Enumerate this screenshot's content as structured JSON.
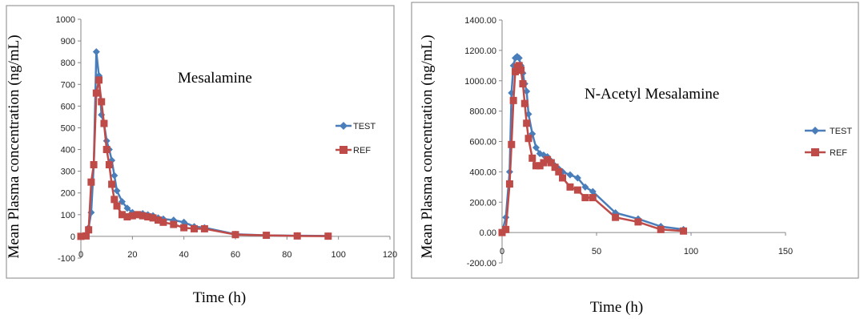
{
  "colors": {
    "test": "#4a7ebb",
    "ref": "#be4b48",
    "axis": "#868686",
    "frame": "#8c8c8c"
  },
  "chart_data": [
    {
      "type": "line",
      "annotation": "Mesalamine",
      "xlabel": "Time (h)",
      "ylabel": "Mean Plasma concentration (ng/mL)",
      "xlim": [
        0,
        120
      ],
      "ylim": [
        -100,
        1000
      ],
      "xticks": [
        0,
        20,
        40,
        60,
        80,
        100,
        120
      ],
      "yticks": [
        -100,
        0,
        100,
        200,
        300,
        400,
        500,
        600,
        700,
        800,
        900,
        1000
      ],
      "xtick_labels": [
        "0",
        "20",
        "40",
        "60",
        "80",
        "100",
        "120"
      ],
      "ytick_labels": [
        "-100",
        "0",
        "100",
        "200",
        "300",
        "400",
        "500",
        "600",
        "700",
        "800",
        "900",
        "1000"
      ],
      "legend_position": "right",
      "series": [
        {
          "name": "TEST",
          "marker": "diamond",
          "x": [
            0,
            2,
            3,
            4,
            5,
            6,
            7,
            8,
            9,
            10,
            11,
            12,
            13,
            14,
            16,
            18,
            20,
            22,
            24,
            26,
            28,
            30,
            32,
            36,
            40,
            44,
            48,
            60,
            72,
            84,
            96
          ],
          "y": [
            0,
            5,
            40,
            110,
            330,
            850,
            740,
            560,
            520,
            440,
            400,
            350,
            280,
            210,
            160,
            130,
            110,
            100,
            105,
            100,
            95,
            85,
            80,
            75,
            65,
            45,
            40,
            10,
            5,
            3,
            2
          ]
        },
        {
          "name": "REF",
          "marker": "square",
          "x": [
            0,
            2,
            3,
            4,
            5,
            6,
            7,
            8,
            9,
            10,
            11,
            12,
            13,
            14,
            16,
            18,
            20,
            22,
            24,
            26,
            28,
            30,
            32,
            36,
            40,
            44,
            48,
            60,
            72,
            84,
            96
          ],
          "y": [
            0,
            2,
            30,
            250,
            330,
            660,
            720,
            620,
            520,
            400,
            330,
            240,
            170,
            140,
            100,
            90,
            95,
            100,
            95,
            90,
            85,
            75,
            65,
            55,
            40,
            35,
            35,
            8,
            5,
            2,
            1
          ]
        }
      ]
    },
    {
      "type": "line",
      "annotation": "N-Acetyl Mesalamine",
      "xlabel": "Time (h)",
      "ylabel": "Mean Plasma concentration (ng/mL)",
      "xlim": [
        0,
        150
      ],
      "ylim": [
        -200,
        1400
      ],
      "xticks": [
        0,
        50,
        100,
        150
      ],
      "yticks": [
        -200,
        0,
        200,
        400,
        600,
        800,
        1000,
        1200,
        1400
      ],
      "xtick_labels": [
        "0",
        "50",
        "100",
        "150"
      ],
      "ytick_labels": [
        "-200.00",
        "0.00",
        "200.00",
        "400.00",
        "600.00",
        "800.00",
        "1000.00",
        "1200.00",
        "1400.00"
      ],
      "legend_position": "right",
      "series": [
        {
          "name": "TEST",
          "marker": "diamond",
          "x": [
            0,
            2,
            4,
            5,
            6,
            7,
            8,
            9,
            10,
            11,
            12,
            13,
            14,
            16,
            18,
            20,
            22,
            24,
            26,
            28,
            30,
            32,
            36,
            40,
            44,
            48,
            60,
            72,
            84,
            96
          ],
          "y": [
            0,
            100,
            400,
            920,
            1100,
            1150,
            1160,
            1150,
            1100,
            1050,
            980,
            930,
            780,
            650,
            560,
            520,
            510,
            500,
            470,
            440,
            420,
            400,
            380,
            360,
            300,
            270,
            130,
            90,
            40,
            20
          ]
        },
        {
          "name": "REF",
          "marker": "square",
          "x": [
            0,
            2,
            4,
            5,
            6,
            7,
            8,
            9,
            10,
            11,
            12,
            13,
            14,
            16,
            18,
            20,
            22,
            24,
            26,
            28,
            30,
            32,
            36,
            40,
            44,
            48,
            60,
            72,
            84,
            96
          ],
          "y": [
            0,
            20,
            320,
            580,
            870,
            1060,
            1090,
            1100,
            1070,
            980,
            850,
            720,
            620,
            490,
            440,
            440,
            460,
            480,
            460,
            430,
            400,
            360,
            300,
            280,
            230,
            230,
            100,
            70,
            20,
            10
          ]
        }
      ]
    }
  ]
}
